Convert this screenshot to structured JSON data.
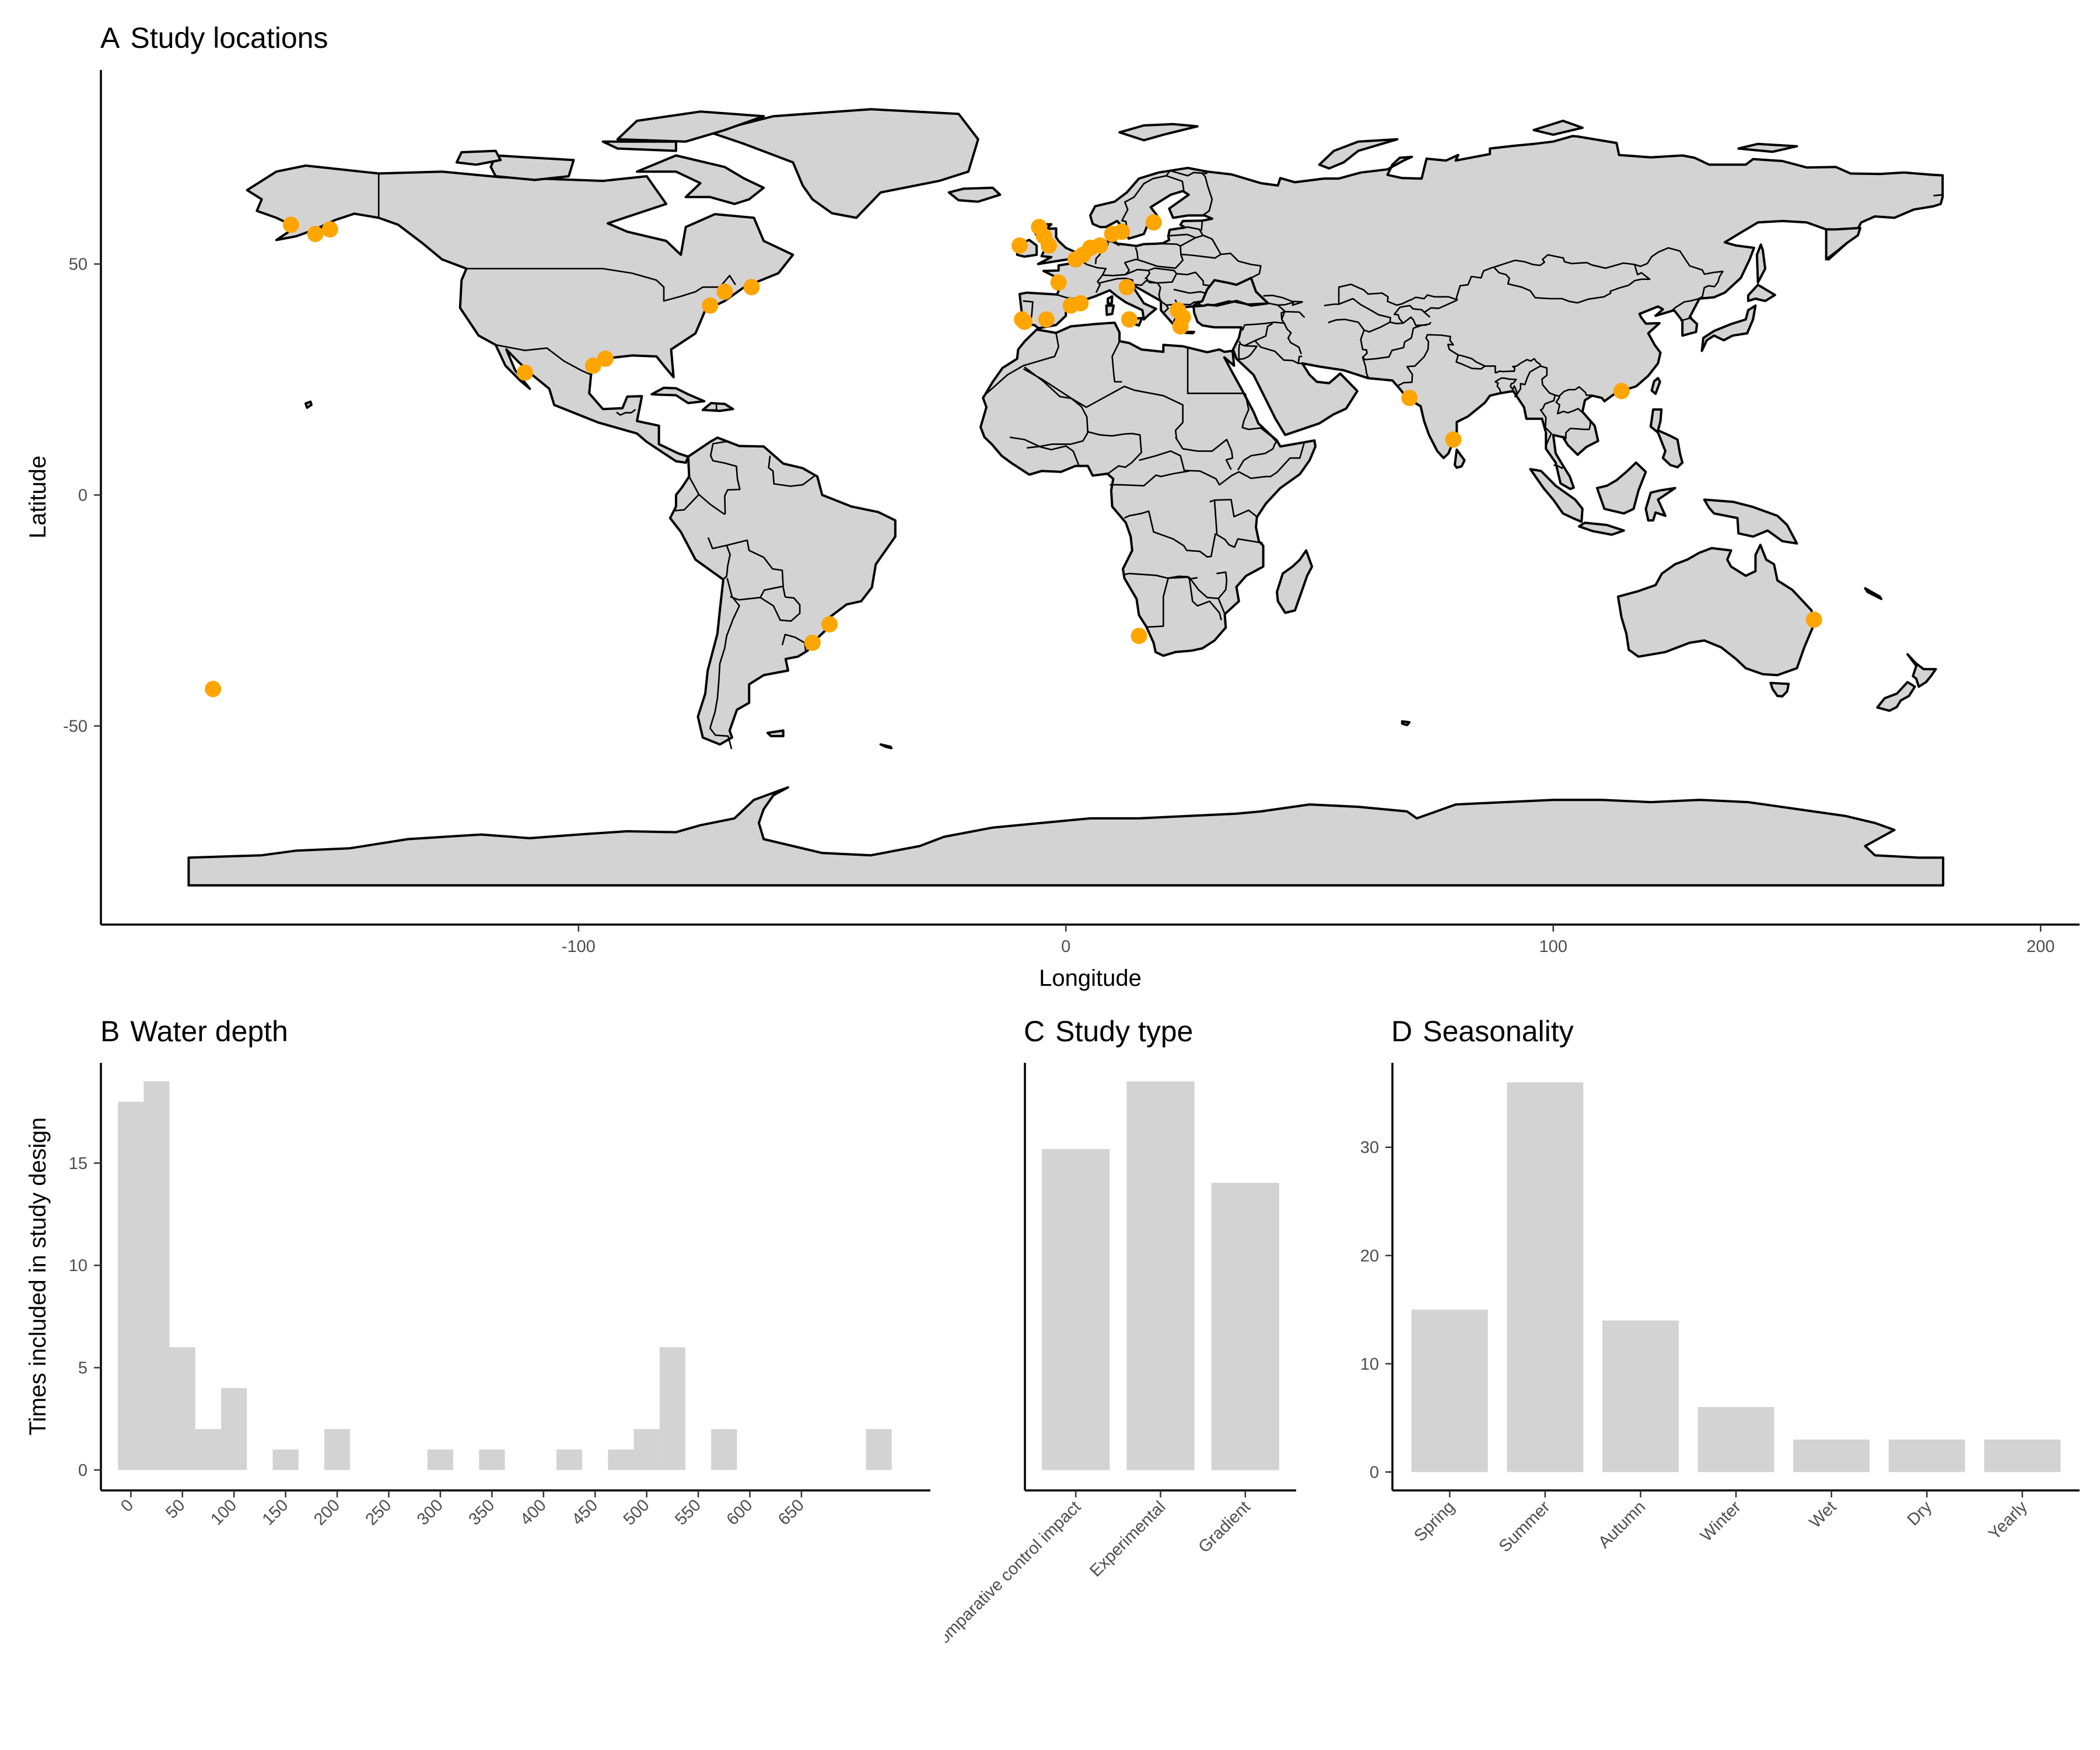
{
  "colors": {
    "land": "#d3d3d3",
    "point": "#ffa500",
    "bar": "#d3d3d3"
  },
  "chart_data": [
    {
      "panel": "A",
      "type": "scatter",
      "title": "Study locations",
      "xlabel": "Longitude",
      "ylabel": "Latitude",
      "xlim": [
        -198,
        208
      ],
      "ylim": [
        -93,
        92
      ],
      "x_ticks": [
        -100,
        0,
        100,
        200
      ],
      "y_ticks": [
        -50,
        0,
        50
      ],
      "basemap": "world",
      "points": [
        {
          "x": -159,
          "y": 58.5
        },
        {
          "x": -154,
          "y": 56.5
        },
        {
          "x": -151,
          "y": 57.5
        },
        {
          "x": -111,
          "y": 26.5
        },
        {
          "x": -97,
          "y": 28
        },
        {
          "x": -94.5,
          "y": 29.5
        },
        {
          "x": -73,
          "y": 41
        },
        {
          "x": -70,
          "y": 44
        },
        {
          "x": -64.5,
          "y": 45
        },
        {
          "x": -52,
          "y": -32
        },
        {
          "x": -48.5,
          "y": -28
        },
        {
          "x": -175,
          "y": -42
        },
        {
          "x": -9.5,
          "y": 54
        },
        {
          "x": -5.5,
          "y": 58
        },
        {
          "x": -4.5,
          "y": 56
        },
        {
          "x": -3.5,
          "y": 54
        },
        {
          "x": 2,
          "y": 51
        },
        {
          "x": 3.5,
          "y": 52
        },
        {
          "x": 5,
          "y": 53.5
        },
        {
          "x": 7,
          "y": 54
        },
        {
          "x": 9.5,
          "y": 56.5
        },
        {
          "x": 11.5,
          "y": 57
        },
        {
          "x": 18,
          "y": 59
        },
        {
          "x": -1.5,
          "y": 46
        },
        {
          "x": -9,
          "y": 38
        },
        {
          "x": -8.5,
          "y": 37.5
        },
        {
          "x": -4,
          "y": 38
        },
        {
          "x": 1,
          "y": 41
        },
        {
          "x": 3,
          "y": 41.5
        },
        {
          "x": 12.5,
          "y": 45
        },
        {
          "x": 13,
          "y": 38
        },
        {
          "x": 23,
          "y": 40
        },
        {
          "x": 24,
          "y": 38.5
        },
        {
          "x": 23.5,
          "y": 36.5
        },
        {
          "x": 15,
          "y": -30.5
        },
        {
          "x": 70.5,
          "y": 21
        },
        {
          "x": 79.5,
          "y": 12
        },
        {
          "x": 114,
          "y": 22.5
        },
        {
          "x": 153.5,
          "y": -27
        }
      ]
    },
    {
      "panel": "B",
      "type": "bar",
      "title": "Water depth",
      "xlabel": "",
      "ylabel": "Times included in study design",
      "bin_width": 25,
      "x_ticks": [
        "0",
        "50",
        "100",
        "150",
        "200",
        "250",
        "300",
        "350",
        "400",
        "450",
        "500",
        "550",
        "600",
        "650"
      ],
      "y_ticks": [
        0,
        5,
        10,
        15
      ],
      "ylim": [
        -1,
        19.9
      ],
      "xlim": [
        -29,
        775
      ],
      "bins": [
        {
          "x": 0,
          "value": 18
        },
        {
          "x": 25,
          "value": 19
        },
        {
          "x": 50,
          "value": 6
        },
        {
          "x": 75,
          "value": 2
        },
        {
          "x": 100,
          "value": 4
        },
        {
          "x": 150,
          "value": 1
        },
        {
          "x": 200,
          "value": 2
        },
        {
          "x": 300,
          "value": 1
        },
        {
          "x": 350,
          "value": 1
        },
        {
          "x": 425,
          "value": 1
        },
        {
          "x": 475,
          "value": 1
        },
        {
          "x": 500,
          "value": 2
        },
        {
          "x": 525,
          "value": 6
        },
        {
          "x": 575,
          "value": 2
        },
        {
          "x": 725,
          "value": 2
        }
      ]
    },
    {
      "panel": "C",
      "type": "bar",
      "title": "Study type",
      "xlabel": "",
      "ylabel": "",
      "categories": [
        "Comparative control impact",
        "Experimental",
        "Gradient"
      ],
      "values": [
        19,
        23,
        17
      ],
      "y_ticks": [
        0,
        5,
        10,
        15,
        20
      ],
      "ylim": [
        -1.2,
        24.1
      ]
    },
    {
      "panel": "D",
      "type": "bar",
      "title": "Seasonality",
      "xlabel": "",
      "ylabel": "",
      "categories": [
        "Spring",
        "Summer",
        "Autumn",
        "Winter",
        "Wet",
        "Dry",
        "Yearly"
      ],
      "values": [
        15,
        36,
        14,
        6,
        3,
        3,
        3
      ],
      "y_ticks": [
        0,
        10,
        20,
        30
      ],
      "ylim": [
        -1.7,
        37.8
      ]
    }
  ]
}
